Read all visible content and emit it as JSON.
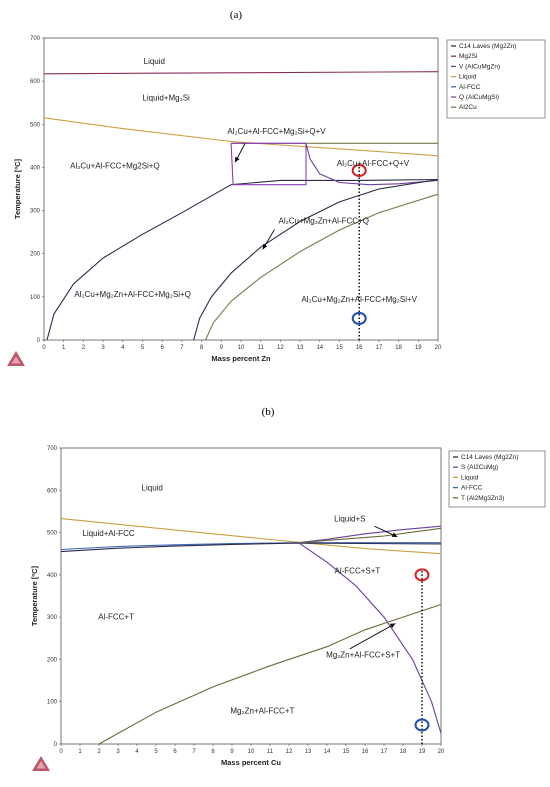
{
  "figure": {
    "label_a": "(a)",
    "label_b": "(b)"
  },
  "colors": {
    "c14": "#2b2b4a",
    "mg2si": "#8a2e5a",
    "v": "#6b3fa0",
    "liquid": "#c9a040",
    "alfcc": "#3a66b8",
    "q": "#8a3fb5",
    "al2cu": "#7a7a4a",
    "s": "#6b3fa0",
    "t": "#6b6b3a",
    "marker_red": "#d42020",
    "marker_blue": "#1f4fa8",
    "logo": "#b03a50"
  },
  "chart_data": [
    {
      "type": "line",
      "panel": "(a)",
      "xlabel": "Mass percent Zn",
      "ylabel": "Temperature [ºC]",
      "xlim": [
        0,
        20
      ],
      "ylim": [
        0,
        700
      ],
      "xticks": [
        "0",
        "1",
        "2",
        "3",
        "4",
        "5",
        "6",
        "7",
        "8",
        "9",
        "10",
        "11",
        "12",
        "13",
        "14",
        "15",
        "16",
        "17",
        "18",
        "19",
        "20"
      ],
      "yticks": [
        "0",
        "100",
        "200",
        "300",
        "400",
        "500",
        "600",
        "700"
      ],
      "legend": [
        "C14 Laves (Mg2Zn)",
        "Mg2Si",
        "V (AlCuMgZn)",
        "Liquid",
        "Al-FCC",
        "Q (AlCuMgSi)",
        "Al2Cu"
      ],
      "legend_colors": [
        "c14",
        "mg2si",
        "v",
        "liquid",
        "alfcc",
        "q",
        "al2cu"
      ],
      "series": [
        {
          "name": "Mg2Si",
          "color": "mg2si",
          "x": [
            0,
            20
          ],
          "y": [
            617,
            622
          ]
        },
        {
          "name": "Liquid",
          "color": "liquid",
          "x": [
            0,
            4,
            9.5,
            12,
            16,
            20
          ],
          "y": [
            515,
            490,
            460,
            452,
            440,
            427
          ]
        },
        {
          "name": "Al2Cu",
          "color": "al2cu",
          "x": [
            9.5,
            20
          ],
          "y": [
            456,
            456
          ]
        },
        {
          "name": "C14 Laves (Mg2Zn)",
          "color": "c14",
          "x": [
            0.15,
            0.5,
            1.5,
            3,
            5,
            7,
            9.5,
            12,
            16,
            20
          ],
          "y": [
            0,
            60,
            130,
            190,
            245,
            295,
            360,
            370,
            370,
            372
          ]
        },
        {
          "name": "Q (AlCuMgSi)",
          "color": "q",
          "x": [
            9.5,
            9.6,
            13.3,
            13.3,
            9.5
          ],
          "y": [
            456,
            360,
            360,
            456,
            456
          ]
        },
        {
          "name": "V (AlCuMgZn)",
          "color": "v",
          "x": [
            13.3,
            13.5,
            14,
            15,
            16.5,
            18,
            20
          ],
          "y": [
            456,
            420,
            385,
            365,
            360,
            362,
            370
          ]
        },
        {
          "name": "C14 Laves (Mg2Zn)",
          "color": "c14",
          "x": [
            7.6,
            7.9,
            8.5,
            9.5,
            11,
            13,
            15,
            17,
            20
          ],
          "y": [
            0,
            50,
            100,
            155,
            215,
            275,
            320,
            350,
            372
          ]
        },
        {
          "name": "Al2Cu",
          "color": "al2cu",
          "x": [
            8.2,
            8.6,
            9.5,
            11,
            13,
            15,
            17,
            20
          ],
          "y": [
            0,
            40,
            90,
            145,
            205,
            255,
            295,
            338
          ]
        }
      ],
      "annotations": [
        {
          "text": "Liquid",
          "x": 5.6,
          "y": 640
        },
        {
          "text": "Liquid+Mg₂Si",
          "x": 6.2,
          "y": 555
        },
        {
          "text": "Al₂Cu+Al-FCC+Mg₂Si+Q+V",
          "x": 11.8,
          "y": 478
        },
        {
          "text": "Al₂Cu+Al-FCC+Mg2Si+Q",
          "x": 3.6,
          "y": 397
        },
        {
          "text": "Al₂Cu+Al-FCC+Q+V",
          "x": 16.7,
          "y": 403
        },
        {
          "text": "Al₂Cu+Mg₂Zn+Al-FCC+Q",
          "x": 14.2,
          "y": 270
        },
        {
          "text": "Al₂Cu+Mg₂Zn+Al-FCC+Mg₂Si+Q",
          "x": 4.5,
          "y": 100
        },
        {
          "text": "Al₂Cu+Mg₂Zn+Al-FCC+Mg₂Si+V",
          "x": 16,
          "y": 88
        }
      ],
      "arrows": [
        {
          "from": [
            10.2,
            455
          ],
          "to": [
            9.7,
            412
          ]
        },
        {
          "from": [
            11.7,
            256
          ],
          "to": [
            11.1,
            210
          ]
        }
      ],
      "dotted_line_x": 16,
      "markers": [
        {
          "x": 16,
          "y": 393,
          "color": "marker_red"
        },
        {
          "x": 16,
          "y": 50,
          "color": "marker_blue"
        }
      ]
    },
    {
      "type": "line",
      "panel": "(b)",
      "xlabel": "Mass percent Cu",
      "ylabel": "Temperature [ºC]",
      "xlim": [
        0,
        20
      ],
      "ylim": [
        0,
        700
      ],
      "xticks": [
        "0",
        "1",
        "2",
        "3",
        "4",
        "5",
        "6",
        "7",
        "8",
        "9",
        "10",
        "11",
        "12",
        "13",
        "14",
        "15",
        "16",
        "17",
        "18",
        "19",
        "20"
      ],
      "yticks": [
        "0",
        "100",
        "200",
        "300",
        "400",
        "500",
        "600",
        "700"
      ],
      "legend": [
        "C14 Laves (Mg2Zn)",
        "S (Al2CuMg)",
        "Liquid",
        "Al-FCC",
        "T (Al2Mg3Zn3)"
      ],
      "legend_colors": [
        "c14",
        "s",
        "liquid",
        "alfcc",
        "t"
      ],
      "series": [
        {
          "name": "Liquid",
          "color": "liquid",
          "x": [
            0,
            4,
            8,
            12.5,
            16,
            20
          ],
          "y": [
            533,
            515,
            497,
            477,
            462,
            450
          ]
        },
        {
          "name": "Al-FCC",
          "color": "alfcc",
          "x": [
            0,
            3,
            6,
            9,
            12.5,
            20
          ],
          "y": [
            460,
            467,
            471,
            474,
            476,
            476
          ]
        },
        {
          "name": "C14 Laves (Mg2Zn)",
          "color": "c14",
          "x": [
            0,
            3,
            6,
            9,
            12.5,
            20
          ],
          "y": [
            455,
            463,
            468,
            472,
            475,
            473
          ]
        },
        {
          "name": "S (Al2CuMg)",
          "color": "s",
          "x": [
            12.5,
            14,
            16,
            18,
            20
          ],
          "y": [
            476,
            484,
            497,
            507,
            515
          ]
        },
        {
          "name": "T (Al2Mg3Zn3)",
          "color": "t",
          "x": [
            12.5,
            15,
            17,
            20
          ],
          "y": [
            476,
            485,
            492,
            510
          ]
        },
        {
          "name": "S (Al2CuMg)",
          "color": "s",
          "x": [
            12.5,
            14,
            15.5,
            17,
            18.5,
            19.5,
            20
          ],
          "y": [
            476,
            430,
            375,
            300,
            200,
            100,
            25
          ]
        },
        {
          "name": "T (Al2Mg3Zn3)",
          "color": "t",
          "x": [
            2,
            3,
            5,
            8,
            11,
            14,
            16,
            20
          ],
          "y": [
            0,
            25,
            75,
            135,
            185,
            230,
            270,
            330
          ]
        }
      ],
      "annotations": [
        {
          "text": "Liquid",
          "x": 4.8,
          "y": 600
        },
        {
          "text": "Liquid+S",
          "x": 15.2,
          "y": 526
        },
        {
          "text": "Liquid+Al-FCC",
          "x": 2.5,
          "y": 492
        },
        {
          "text": "Al-FCC+S+T",
          "x": 15.6,
          "y": 403
        },
        {
          "text": "Al-FCC+T",
          "x": 2.9,
          "y": 295
        },
        {
          "text": "Mg₂Zn+Al-FCC+S+T",
          "x": 15.9,
          "y": 205
        },
        {
          "text": "Mg₂Zn+Al-FCC+T",
          "x": 10.6,
          "y": 72
        }
      ],
      "arrows": [
        {
          "from": [
            16.5,
            515
          ],
          "to": [
            17.7,
            490
          ]
        },
        {
          "from": [
            15.2,
            225
          ],
          "to": [
            17.6,
            285
          ]
        }
      ],
      "dotted_line_x": 19,
      "markers": [
        {
          "x": 19,
          "y": 400,
          "color": "marker_red"
        },
        {
          "x": 19,
          "y": 45,
          "color": "marker_blue"
        }
      ]
    }
  ]
}
